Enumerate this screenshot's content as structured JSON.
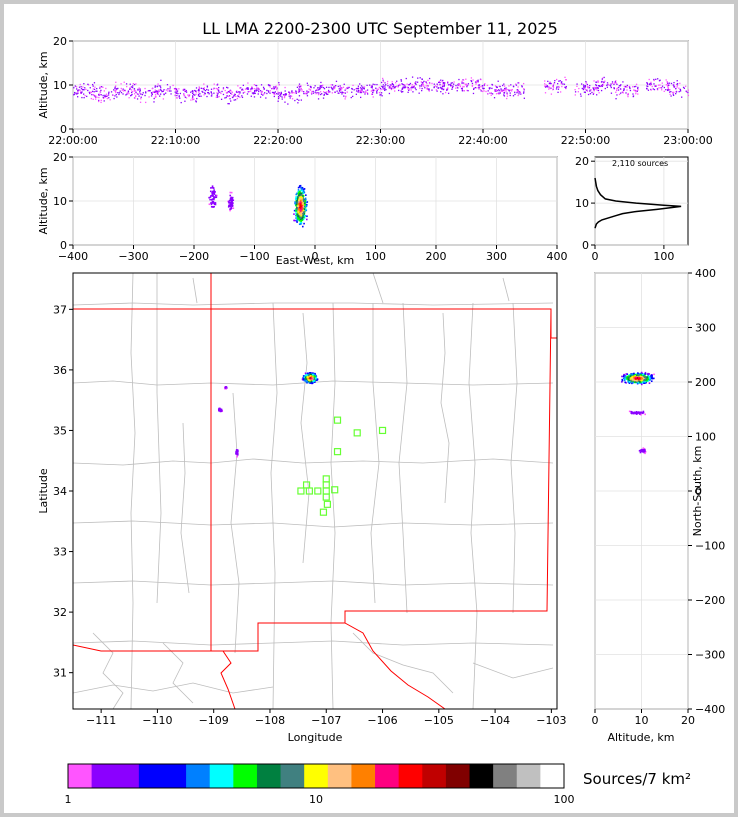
{
  "title": "LL LMA 2200-2300 UTC September 11, 2025",
  "time_altitude": {
    "ylabel": "Altitude, km",
    "yticks": [
      "0",
      "10",
      "20"
    ],
    "xticks": [
      "22:00:00",
      "22:10:00",
      "22:20:00",
      "22:30:00",
      "22:40:00",
      "22:50:00",
      "23:00:00"
    ]
  },
  "ew_altitude": {
    "ylabel": "Altitude, km",
    "xlabel": "East-West, km",
    "yticks": [
      "0",
      "10",
      "20"
    ],
    "xticks": [
      "−400",
      "−300",
      "−200",
      "−100",
      "0",
      "100",
      "200",
      "300",
      "400"
    ]
  },
  "histogram": {
    "annotation": "2,110 sources",
    "yticks": [
      "0",
      "10",
      "20"
    ],
    "xticks": [
      "0",
      "100"
    ]
  },
  "map": {
    "xlabel": "Longitude",
    "ylabel": "Latitude",
    "xticks": [
      "−111",
      "−110",
      "−109",
      "−108",
      "−107",
      "−106",
      "−105",
      "−104",
      "−103"
    ],
    "yticks": [
      "31",
      "32",
      "33",
      "34",
      "35",
      "36",
      "37"
    ]
  },
  "ns_altitude": {
    "xlabel": "Altitude, km",
    "ylabel": "North-South, km",
    "xticks": [
      "0",
      "10",
      "20"
    ],
    "yticks": [
      "−400",
      "−300",
      "−200",
      "−100",
      "0",
      "100",
      "200",
      "300",
      "400"
    ]
  },
  "colorbar": {
    "label": "Sources/7 km²",
    "ticks": [
      "1",
      "10",
      "100"
    ],
    "colors": [
      "#ff55ff",
      "#8b00ff",
      "#8b00ff",
      "#0000ff",
      "#0000ff",
      "#0080ff",
      "#00ffff",
      "#00ff00",
      "#008040",
      "#408080",
      "#ffff00",
      "#ffc080",
      "#ff8000",
      "#ff0080",
      "#ff0000",
      "#c00000",
      "#800000",
      "#000000",
      "#808080",
      "#c0c0c0",
      "#ffffff"
    ]
  },
  "chart_data": [
    {
      "type": "scatter",
      "name": "time-altitude",
      "xlim": [
        "22:00:00",
        "23:00:00"
      ],
      "ylim": [
        0,
        20
      ],
      "points_x_minutes_after_2200": [
        1,
        3,
        5,
        7,
        9,
        11,
        13,
        15,
        17,
        19,
        21,
        23,
        25,
        27,
        29,
        31,
        33,
        35,
        37,
        39,
        41,
        43,
        47,
        50,
        52,
        54,
        57,
        59
      ],
      "points_y_km": [
        9,
        8,
        9,
        8,
        9,
        8,
        9,
        8,
        9,
        9,
        8,
        9,
        9,
        9,
        9,
        10,
        10,
        10,
        10,
        10,
        9,
        9,
        10,
        9,
        10,
        9,
        10,
        9
      ]
    },
    {
      "type": "scatter",
      "name": "east-west-altitude",
      "xlim": [
        -400,
        400
      ],
      "ylim": [
        0,
        20
      ],
      "clusters": [
        {
          "x_km": -25,
          "y_km": 9,
          "spread_x": 12,
          "spread_y": 4,
          "density": "high"
        },
        {
          "x_km": -170,
          "y_km": 11,
          "spread_x": 8,
          "spread_y": 3,
          "density": "low"
        },
        {
          "x_km": -140,
          "y_km": 10,
          "spread_x": 6,
          "spread_y": 2,
          "density": "low"
        }
      ]
    },
    {
      "type": "line",
      "name": "altitude-histogram",
      "annotation": "2,110 sources",
      "xlim": [
        0,
        135
      ],
      "ylim": [
        0,
        21
      ],
      "x_counts": [
        0,
        2,
        5,
        10,
        20,
        30,
        40,
        60,
        90,
        115,
        125,
        100,
        60,
        30,
        15,
        8,
        4,
        2,
        1,
        0
      ],
      "y_km": [
        4,
        5,
        5.5,
        6,
        6.5,
        7,
        7.5,
        8,
        8.5,
        9,
        9.2,
        9.5,
        10,
        10.5,
        11,
        12,
        13,
        14,
        15,
        16
      ]
    },
    {
      "type": "scatter",
      "name": "plan-view-map",
      "xlim": [
        -111.5,
        -102.9
      ],
      "ylim": [
        30.4,
        37.6
      ],
      "source_clusters": [
        {
          "lon": -107.3,
          "lat": 35.88,
          "spread_lon": 0.15,
          "spread_lat": 0.1,
          "density": "high"
        },
        {
          "lon": -108.9,
          "lat": 35.35,
          "spread_lon": 0.04,
          "spread_lat": 0.05,
          "density": "low"
        },
        {
          "lon": -108.6,
          "lat": 34.65,
          "spread_lon": 0.03,
          "spread_lat": 0.07,
          "density": "low"
        },
        {
          "lon": -108.8,
          "lat": 35.72,
          "spread_lon": 0.02,
          "spread_lat": 0.02,
          "density": "low"
        }
      ],
      "stations": [
        {
          "lon": -106.8,
          "lat": 35.17
        },
        {
          "lon": -106.45,
          "lat": 34.96
        },
        {
          "lon": -106.0,
          "lat": 35.0
        },
        {
          "lon": -106.8,
          "lat": 34.65
        },
        {
          "lon": -107.0,
          "lat": 34.2
        },
        {
          "lon": -107.0,
          "lat": 34.1
        },
        {
          "lon": -107.35,
          "lat": 34.1
        },
        {
          "lon": -107.45,
          "lat": 34.0
        },
        {
          "lon": -107.3,
          "lat": 34.0
        },
        {
          "lon": -107.15,
          "lat": 34.0
        },
        {
          "lon": -107.0,
          "lat": 34.0
        },
        {
          "lon": -106.85,
          "lat": 34.02
        },
        {
          "lon": -107.0,
          "lat": 33.9
        },
        {
          "lon": -106.98,
          "lat": 33.78
        },
        {
          "lon": -107.05,
          "lat": 33.65
        }
      ]
    },
    {
      "type": "scatter",
      "name": "altitude-north-south",
      "xlim": [
        0,
        20
      ],
      "ylim": [
        -400,
        400
      ],
      "clusters": [
        {
          "x_km": 9,
          "y_km": 208,
          "spread_x": 4,
          "spread_y": 12,
          "density": "high"
        },
        {
          "x_km": 9,
          "y_km": 145,
          "spread_x": 3,
          "spread_y": 5,
          "density": "low"
        },
        {
          "x_km": 10,
          "y_km": 75,
          "spread_x": 1,
          "spread_y": 6,
          "density": "low"
        }
      ]
    }
  ]
}
